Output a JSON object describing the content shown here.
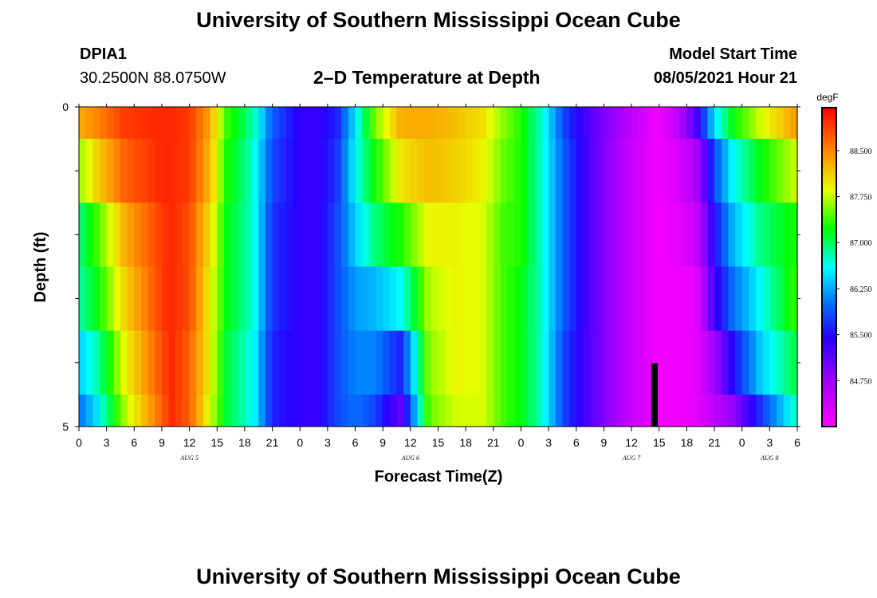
{
  "header": {
    "title": "University of Southern Mississippi Ocean Cube",
    "station_id": "DPIA1",
    "coordinates": "30.2500N  88.0750W",
    "plot_title": "2–D Temperature at Depth",
    "model_label": "Model Start Time",
    "model_time": "08/05/2021 Hour 21"
  },
  "footer": {
    "title": "University of Southern Mississippi Ocean Cube"
  },
  "chart_data": {
    "type": "heatmap",
    "title": "2–D Temperature at Depth",
    "xlabel": "Forecast Time(Z)",
    "ylabel": "Depth (ft)",
    "ylim": [
      0,
      5
    ],
    "y_ticks": [
      "0",
      "5"
    ],
    "x_tick_labels": [
      "0",
      "3",
      "6",
      "9",
      "12",
      "15",
      "18",
      "21",
      "0",
      "3",
      "6",
      "9",
      "12",
      "15",
      "18",
      "21",
      "0",
      "3",
      "6",
      "9",
      "12",
      "15",
      "18",
      "21",
      "0",
      "3",
      "6"
    ],
    "x_tick_hours": [
      0,
      3,
      6,
      9,
      12,
      15,
      18,
      21,
      24,
      27,
      30,
      33,
      36,
      39,
      42,
      45,
      48,
      51,
      54,
      57,
      60,
      63,
      66,
      69,
      72,
      75,
      78
    ],
    "xlim": [
      0,
      78
    ],
    "day_labels": [
      {
        "label": "AUG  5",
        "hour": 12
      },
      {
        "label": "AUG  6",
        "hour": 36
      },
      {
        "label": "AUG  7",
        "hour": 60
      },
      {
        "label": "AUG  8",
        "hour": 75
      }
    ],
    "depth_layers_ft": [
      0.25,
      1.25,
      2.25,
      3.25,
      4.25,
      4.75
    ],
    "colorbar": {
      "unit": "degF",
      "range": [
        84.0,
        89.2
      ],
      "tick_labels": [
        "88.500",
        "87.750",
        "87.000",
        "86.250",
        "85.500",
        "84.750"
      ],
      "tick_values": [
        88.5,
        87.75,
        87.0,
        86.25,
        85.5,
        84.75
      ]
    },
    "layers": [
      {
        "depth": 0.25,
        "hours": [
          0,
          2,
          5,
          9,
          10,
          12,
          14,
          16,
          19,
          21,
          24,
          26,
          28,
          30,
          32,
          35,
          38,
          41,
          44,
          46,
          48,
          50,
          53,
          56,
          60,
          63,
          65,
          67,
          69,
          71,
          74,
          78
        ],
        "values": [
          88.3,
          88.5,
          88.9,
          89.0,
          89.0,
          88.9,
          88.4,
          87.4,
          86.8,
          85.9,
          85.4,
          85.4,
          85.6,
          86.5,
          87.5,
          88.3,
          88.3,
          88.2,
          88.0,
          87.6,
          87.3,
          86.8,
          85.7,
          85.1,
          84.5,
          84.1,
          84.5,
          85.2,
          86.5,
          87.2,
          87.8,
          88.4
        ]
      },
      {
        "depth": 1.25,
        "hours": [
          0,
          2,
          5,
          9,
          10,
          12,
          14,
          16,
          19,
          21,
          24,
          26,
          28,
          30,
          32,
          35,
          38,
          41,
          44,
          46,
          48,
          50,
          53,
          56,
          60,
          63,
          65,
          67,
          69,
          71,
          74,
          78
        ],
        "values": [
          87.6,
          88.1,
          88.7,
          89.0,
          89.0,
          88.9,
          88.3,
          87.3,
          86.7,
          85.8,
          85.4,
          85.4,
          85.7,
          86.6,
          87.2,
          88.0,
          88.2,
          88.1,
          87.9,
          87.5,
          87.3,
          86.8,
          85.8,
          85.1,
          84.4,
          84.1,
          84.3,
          84.6,
          85.8,
          86.6,
          87.2,
          87.8
        ]
      },
      {
        "depth": 2.25,
        "hours": [
          0,
          2,
          5,
          9,
          10,
          12,
          14,
          16,
          19,
          21,
          24,
          26,
          28,
          30,
          32,
          35,
          38,
          41,
          44,
          46,
          48,
          50,
          53,
          56,
          60,
          63,
          65,
          67,
          69,
          71,
          74,
          78
        ],
        "values": [
          86.9,
          87.4,
          88.3,
          88.9,
          89.0,
          88.8,
          88.1,
          87.2,
          86.7,
          85.7,
          85.4,
          85.4,
          85.8,
          86.4,
          86.9,
          87.3,
          87.9,
          87.9,
          87.8,
          87.4,
          87.3,
          86.8,
          85.8,
          85.1,
          84.4,
          84.1,
          84.2,
          84.4,
          85.5,
          86.3,
          86.9,
          87.3
        ]
      },
      {
        "depth": 3.25,
        "hours": [
          0,
          2,
          5,
          9,
          10,
          12,
          14,
          16,
          19,
          21,
          24,
          26,
          28,
          30,
          32,
          35,
          38,
          41,
          44,
          46,
          48,
          50,
          53,
          56,
          60,
          63,
          65,
          67,
          69,
          71,
          74,
          78
        ],
        "values": [
          86.8,
          87.2,
          88.1,
          88.9,
          89.0,
          88.8,
          88.0,
          87.2,
          86.7,
          85.7,
          85.4,
          85.4,
          85.8,
          86.2,
          86.3,
          86.6,
          87.7,
          87.9,
          87.8,
          87.4,
          87.2,
          86.8,
          85.8,
          85.1,
          84.4,
          84.1,
          84.1,
          84.2,
          85.3,
          86.0,
          86.6,
          87.4
        ]
      },
      {
        "depth": 4.25,
        "hours": [
          0,
          2,
          5,
          9,
          10,
          12,
          14,
          16,
          19,
          21,
          24,
          26,
          28,
          30,
          32,
          35,
          38,
          41,
          44,
          46,
          48,
          50,
          53,
          56,
          60,
          63,
          65,
          67,
          69,
          71,
          74,
          78
        ],
        "values": [
          86.4,
          86.8,
          87.9,
          88.8,
          89.0,
          88.7,
          88.0,
          87.1,
          86.6,
          85.6,
          85.4,
          85.4,
          85.8,
          86.1,
          86.1,
          85.6,
          87.6,
          87.9,
          87.8,
          87.4,
          87.2,
          86.8,
          85.7,
          85.1,
          84.4,
          84.1,
          84.1,
          84.2,
          84.7,
          85.5,
          86.4,
          87.1
        ]
      },
      {
        "depth": 4.75,
        "hours": [
          0,
          2,
          5,
          9,
          10,
          12,
          14,
          16,
          19,
          21,
          24,
          26,
          28,
          30,
          32,
          35,
          38,
          41,
          44,
          46,
          48,
          50,
          53,
          56,
          60,
          63,
          65,
          67,
          69,
          71,
          74,
          78
        ],
        "values": [
          86.0,
          86.5,
          87.7,
          88.7,
          89.0,
          88.7,
          87.9,
          87.1,
          86.6,
          85.6,
          85.4,
          85.4,
          85.8,
          86.0,
          85.8,
          85.1,
          87.5,
          87.8,
          87.8,
          87.4,
          87.2,
          86.8,
          85.7,
          85.1,
          84.4,
          84.1,
          84.1,
          84.2,
          84.5,
          84.8,
          85.7,
          86.8
        ]
      }
    ],
    "marker": {
      "hour": 62.5,
      "depth_from": 4.0,
      "depth_to": 5.0,
      "color": "#000000"
    }
  }
}
